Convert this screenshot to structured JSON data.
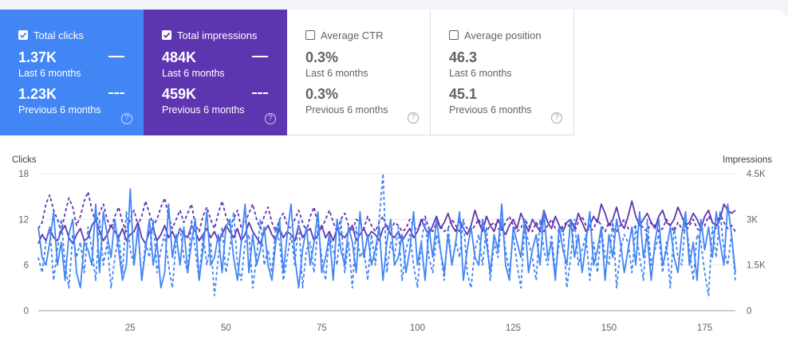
{
  "cards": [
    {
      "id": "clicks",
      "label": "Total clicks",
      "checked": true,
      "current_value": "1.37K",
      "current_label": "Last 6 months",
      "previous_value": "1.23K",
      "previous_label": "Previous 6 months",
      "color": "#4285f4"
    },
    {
      "id": "impressions",
      "label": "Total impressions",
      "checked": true,
      "current_value": "484K",
      "current_label": "Last 6 months",
      "previous_value": "459K",
      "previous_label": "Previous 6 months",
      "color": "#5e35b1"
    },
    {
      "id": "ctr",
      "label": "Average CTR",
      "checked": false,
      "current_value": "0.3%",
      "current_label": "Last 6 months",
      "previous_value": "0.3%",
      "previous_label": "Previous 6 months",
      "color": "#ffffff"
    },
    {
      "id": "position",
      "label": "Average position",
      "checked": false,
      "current_value": "46.3",
      "current_label": "Last 6 months",
      "previous_value": "45.1",
      "previous_label": "Previous 6 months",
      "color": "#ffffff"
    }
  ],
  "help_glyph": "?",
  "chart_data": {
    "type": "line",
    "ylabel_left": "Clicks",
    "ylabel_right": "Impressions",
    "left_ticks": [
      "18",
      "12",
      "6",
      "0"
    ],
    "left_range": [
      0,
      18
    ],
    "right_ticks": [
      "4.5K",
      "3K",
      "1.5K",
      "0"
    ],
    "right_range": [
      0,
      4500
    ],
    "x_ticks": [
      25,
      50,
      75,
      100,
      125,
      150,
      175
    ],
    "x_range": [
      1,
      183
    ],
    "grid": "horizontal",
    "series": [
      {
        "id": "clicks_current",
        "axis": "left",
        "style": "solid",
        "color": "#4285f4",
        "values": [
          11,
          7,
          6,
          9,
          13,
          6,
          9,
          4,
          10,
          12,
          5,
          3,
          9,
          8,
          6,
          14,
          5,
          13,
          10,
          7,
          12,
          8,
          4,
          6,
          16,
          6,
          11,
          4,
          8,
          12,
          6,
          9,
          3,
          5,
          14,
          7,
          10,
          6,
          11,
          5,
          9,
          12,
          4,
          8,
          13,
          6,
          7,
          10,
          5,
          11,
          12,
          7,
          4,
          9,
          14,
          5,
          10,
          6,
          8,
          11,
          6,
          4,
          9,
          12,
          5,
          10,
          14,
          7,
          3,
          8,
          11,
          6,
          9,
          13,
          5,
          7,
          10,
          4,
          12,
          8,
          6,
          11,
          9,
          5,
          13,
          7,
          10,
          6,
          8,
          11,
          4,
          9,
          12,
          6,
          7,
          10,
          5,
          8,
          13,
          6,
          9,
          4,
          11,
          7,
          12,
          8,
          5,
          10,
          6,
          9,
          13,
          4,
          8,
          11,
          7,
          6,
          12,
          9,
          5,
          10,
          8,
          14,
          6,
          4,
          11,
          9,
          7,
          12,
          5,
          8,
          10,
          6,
          13,
          7,
          9,
          4,
          11,
          8,
          6,
          12,
          7,
          10,
          5,
          9,
          13,
          6,
          8,
          11,
          4,
          10,
          7,
          12,
          9,
          5,
          8,
          11,
          6,
          13,
          7,
          10,
          4,
          9,
          12,
          6,
          8,
          11,
          7,
          5,
          10,
          13,
          6,
          9,
          4,
          12,
          8,
          11,
          7,
          13,
          9,
          6,
          14,
          10,
          5
        ]
      },
      {
        "id": "clicks_previous",
        "axis": "left",
        "style": "dashed",
        "color": "#4285f4",
        "values": [
          7,
          5,
          9,
          11,
          4,
          8,
          12,
          6,
          3,
          10,
          7,
          9,
          5,
          11,
          8,
          4,
          12,
          6,
          9,
          3,
          7,
          10,
          5,
          13,
          8,
          6,
          11,
          4,
          9,
          7,
          12,
          5,
          8,
          10,
          6,
          3,
          9,
          11,
          7,
          5,
          12,
          8,
          4,
          10,
          6,
          9,
          2,
          7,
          11,
          5,
          8,
          13,
          6,
          4,
          9,
          10,
          3,
          7,
          12,
          6,
          8,
          5,
          11,
          9,
          4,
          7,
          10,
          6,
          12,
          3,
          8,
          9,
          5,
          11,
          7,
          4,
          10,
          8,
          6,
          12,
          5,
          9,
          3,
          11,
          7,
          8,
          4,
          10,
          6,
          12,
          18,
          5,
          9,
          7,
          11,
          4,
          8,
          10,
          6,
          3,
          9,
          12,
          7,
          5,
          10,
          8,
          4,
          11,
          6,
          9,
          7,
          12,
          5,
          3,
          8,
          10,
          6,
          11,
          4,
          9,
          7,
          12,
          8,
          5,
          10,
          6,
          3,
          11,
          9,
          7,
          4,
          12,
          8,
          6,
          10,
          5,
          9,
          11,
          3,
          7,
          12,
          6,
          8,
          10,
          4,
          9,
          5,
          11,
          7,
          6,
          12,
          3,
          8,
          10,
          9,
          5,
          11,
          7,
          4,
          12,
          6,
          8,
          10,
          5,
          9,
          3,
          11,
          7,
          6,
          12,
          8,
          4,
          10,
          9,
          5,
          2,
          11,
          7,
          13,
          8,
          6,
          10,
          4
        ]
      },
      {
        "id": "impressions_current",
        "axis": "right",
        "style": "solid",
        "color": "#5e35b1",
        "values": [
          2200,
          2500,
          2300,
          2700,
          2400,
          2300,
          2600,
          2800,
          2400,
          2200,
          2500,
          2700,
          2300,
          2400,
          2800,
          3000,
          2600,
          2300,
          2500,
          2800,
          2600,
          2400,
          2700,
          2300,
          2500,
          2600,
          2900,
          2400,
          2200,
          2600,
          2700,
          2300,
          2500,
          2800,
          2400,
          2600,
          2300,
          2700,
          2500,
          2400,
          2800,
          2600,
          2300,
          2500,
          2700,
          2400,
          2600,
          2300,
          2500,
          2800,
          2600,
          2400,
          2700,
          2300,
          2500,
          2900,
          2600,
          2400,
          2200,
          2600,
          2800,
          2500,
          2300,
          2700,
          2400,
          2600,
          2500,
          2300,
          2800,
          2400,
          2600,
          2700,
          2300,
          2500,
          2800,
          2400,
          2600,
          2300,
          2700,
          2500,
          2400,
          2600,
          2800,
          2300,
          2500,
          2700,
          2400,
          2600,
          2500,
          2300,
          2700,
          2800,
          2500,
          2400,
          2600,
          2300,
          2500,
          2700,
          2400,
          2600,
          3000,
          2700,
          2500,
          2800,
          3100,
          2700,
          2900,
          3200,
          2800,
          2600,
          3000,
          2700,
          2500,
          2800,
          3300,
          2900,
          2600,
          3100,
          2800,
          2600,
          3000,
          2700,
          2500,
          2800,
          3000,
          2700,
          3200,
          2900,
          2600,
          3000,
          2800,
          2600,
          3300,
          2900,
          2700,
          3100,
          2800,
          2600,
          2900,
          3000,
          2700,
          3200,
          2900,
          2600,
          2800,
          3100,
          2900,
          3500,
          3200,
          2800,
          3000,
          3400,
          2900,
          2700,
          3100,
          3600,
          3100,
          2800,
          3000,
          3200,
          2900,
          2700,
          3100,
          3300,
          2900,
          2800,
          3000,
          3400,
          3100,
          2800,
          2900,
          3200,
          3000,
          2700,
          3100,
          3300,
          2900,
          2800,
          3000,
          3500,
          3300,
          3200,
          3300
        ]
      },
      {
        "id": "impressions_previous",
        "axis": "right",
        "style": "dashed",
        "color": "#5e35b1",
        "values": [
          2700,
          2900,
          3500,
          3800,
          3300,
          3000,
          2600,
          3200,
          3700,
          3400,
          2800,
          3100,
          3600,
          3900,
          3300,
          2900,
          3200,
          3500,
          3000,
          2700,
          3100,
          3400,
          2900,
          2600,
          3000,
          3300,
          2800,
          3100,
          3600,
          3200,
          2800,
          3000,
          3400,
          3700,
          3100,
          2700,
          3000,
          3300,
          2900,
          3200,
          3500,
          2800,
          2600,
          3100,
          3400,
          3000,
          2700,
          3200,
          3600,
          3100,
          2800,
          3000,
          3300,
          2700,
          2900,
          3200,
          3500,
          3000,
          2700,
          3100,
          3400,
          2900,
          2600,
          3000,
          3200,
          2800,
          2700,
          3000,
          3300,
          2900,
          2600,
          3100,
          3400,
          2800,
          2700,
          3000,
          3300,
          2900,
          2600,
          3000,
          3200,
          2800,
          2600,
          3000,
          2900,
          2700,
          3100,
          2800,
          2600,
          2900,
          3100,
          2700,
          2600,
          2900,
          2800,
          2600,
          2700,
          3000,
          2800,
          2600,
          2900,
          3100,
          2700,
          2600,
          2900,
          2800,
          2600,
          2700,
          3000,
          2800,
          2600,
          2900,
          2700,
          2600,
          2800,
          3000,
          2700,
          2600,
          2800,
          2900,
          2700,
          2600,
          2900,
          3100,
          2800,
          2600,
          2700,
          3000,
          2800,
          2600,
          2900,
          2700,
          2600,
          2800,
          3000,
          2700,
          2600,
          2800,
          2900,
          2700,
          2600,
          2900,
          3100,
          2800,
          2600,
          2700,
          3000,
          2800,
          2600,
          2900,
          2700,
          2600,
          2800,
          3000,
          2700,
          2600,
          2800,
          2900,
          2700,
          2600,
          2900,
          2800,
          2600,
          2700,
          3000,
          2800,
          2600,
          2900,
          2700,
          2600,
          2800,
          3000,
          2700,
          2600,
          2800,
          3100,
          2900,
          2700,
          3200,
          2900,
          2700,
          2800,
          2600
        ]
      }
    ]
  }
}
